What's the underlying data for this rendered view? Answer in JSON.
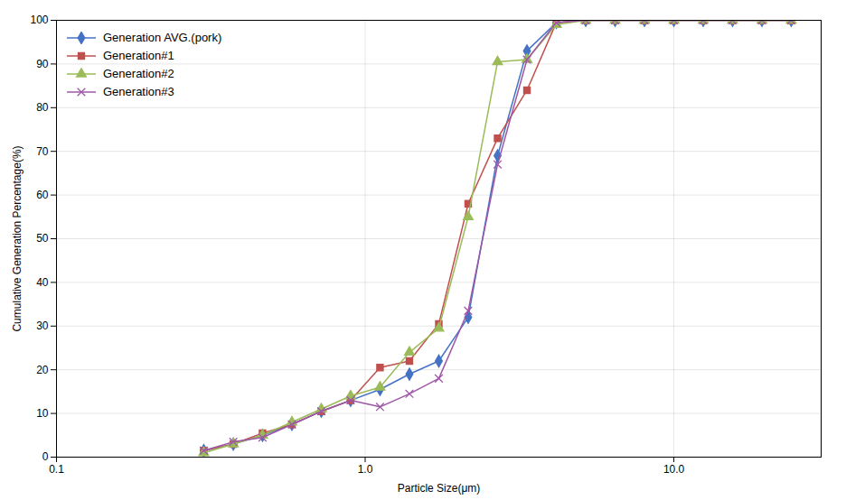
{
  "chart_data": {
    "type": "line",
    "title": "",
    "xlabel": "Particle Size(μm)",
    "ylabel": "Cumulative Generation Percentage(%)",
    "log": "x",
    "grid": true,
    "legend": "upper left",
    "xlim": [
      0.1,
      30
    ],
    "ylim": [
      0,
      100
    ],
    "xticks": [
      0.1,
      {
        "value": 1,
        "label": "1.0"
      },
      {
        "value": 10,
        "label": "10.0"
      }
    ],
    "yticks": [
      0,
      10,
      20,
      30,
      40,
      50,
      60,
      70,
      80,
      90,
      100
    ],
    "x": [
      0.3,
      0.374,
      0.465,
      0.579,
      0.721,
      0.897,
      1.117,
      1.391,
      1.732,
      2.156,
      2.685,
      3.343,
      4.162,
      5.182,
      6.451,
      8.031,
      10.0,
      12.45,
      15.49,
      19.29,
      24.0
    ],
    "series": [
      {
        "name": "Generation AVG.(pork)",
        "color": "#4472C4",
        "marker": "diamond",
        "values": [
          1.5,
          3.0,
          5.0,
          7.5,
          10.5,
          13.0,
          15.5,
          19.0,
          22.0,
          32.0,
          69.0,
          93.0,
          99.5,
          100.0,
          100.0,
          100.0,
          100.0,
          100.0,
          100.0,
          100.0,
          100.0
        ]
      },
      {
        "name": "Generation#1",
        "color": "#C0504D",
        "marker": "square",
        "values": [
          1.5,
          3.0,
          5.5,
          7.5,
          10.5,
          13.0,
          20.5,
          22.0,
          30.5,
          58.0,
          73.0,
          84.0,
          99.5,
          100.0,
          100.0,
          100.0,
          100.0,
          100.0,
          100.0,
          100.0,
          100.0
        ]
      },
      {
        "name": "Generation#2",
        "color": "#9BBB59",
        "marker": "triangle",
        "values": [
          1.0,
          3.0,
          5.0,
          8.0,
          11.0,
          14.0,
          16.0,
          24.0,
          29.5,
          55.0,
          90.5,
          91.0,
          99.0,
          100.0,
          100.0,
          100.0,
          100.0,
          100.0,
          100.0,
          100.0,
          100.0
        ]
      },
      {
        "name": "Generation#3",
        "color": "#9E57A7",
        "marker": "x",
        "values": [
          1.5,
          3.5,
          4.5,
          7.5,
          10.5,
          13.0,
          11.5,
          14.5,
          18.0,
          33.5,
          67.0,
          91.0,
          99.5,
          100.0,
          100.0,
          100.0,
          100.0,
          100.0,
          100.0,
          100.0,
          100.0
        ]
      }
    ]
  }
}
